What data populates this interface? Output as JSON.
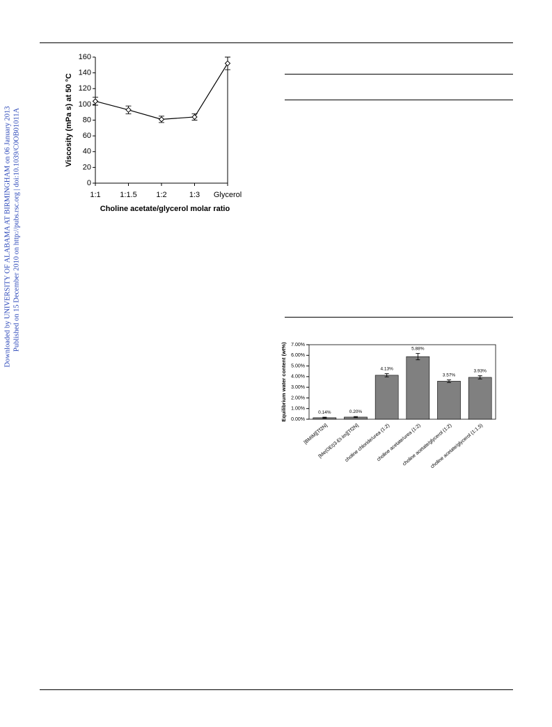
{
  "sidebar": {
    "line1": "Downloaded by UNIVERSITY OF ALABAMA AT BIRMINGHAM on 06 January 2013",
    "line2": "Published on 15 December 2010 on http://pubs.rsc.org | doi:10.1039/C0OB01011A"
  },
  "chart_data": [
    {
      "type": "line",
      "categories": [
        "1:1",
        "1:1.5",
        "1:2",
        "1:3",
        "Glycerol"
      ],
      "values": [
        104,
        93,
        81,
        84,
        152
      ],
      "errors": [
        5,
        5,
        4,
        4,
        8
      ],
      "color": "#000000",
      "ylabel": "Viscosity (mPa s) at 50 °C",
      "xlabel": "Choline acetate/glycerol molar ratio",
      "ylim": [
        0,
        160
      ],
      "yticks": [
        0,
        20,
        40,
        60,
        80,
        100,
        120,
        140,
        160
      ]
    },
    {
      "type": "bar",
      "categories": [
        "[BMIM][Tf2N]",
        "[Me(OEt)3-Et-Im][Tf2N]",
        "choline chloride/urea (1:2)",
        "choline acetate/urea (1:2)",
        "choline acetate/glycerol (1:2)",
        "choline acetate/glycerol (1:1.5)"
      ],
      "values": [
        0.14,
        0.2,
        4.13,
        5.88,
        3.57,
        3.93
      ],
      "value_labels": [
        "0.14%",
        "0.20%",
        "4.13%",
        "5.88%",
        "3.57%",
        "3.93%"
      ],
      "errors": [
        0.05,
        0.05,
        0.15,
        0.3,
        0.12,
        0.15
      ],
      "color": "#808080",
      "ylabel": "Equilibrium water content (wt%)",
      "ylim": [
        0,
        7
      ],
      "yticks": [
        {
          "value": 0,
          "label": "0.00%"
        },
        {
          "value": 1,
          "label": "1.00%"
        },
        {
          "value": 2,
          "label": "2.00%"
        },
        {
          "value": 3,
          "label": "3.00%"
        },
        {
          "value": 4,
          "label": "4.00%"
        },
        {
          "value": 5,
          "label": "5.00%"
        },
        {
          "value": 6,
          "label": "6.00%"
        },
        {
          "value": 7,
          "label": "7.00%"
        }
      ]
    }
  ]
}
